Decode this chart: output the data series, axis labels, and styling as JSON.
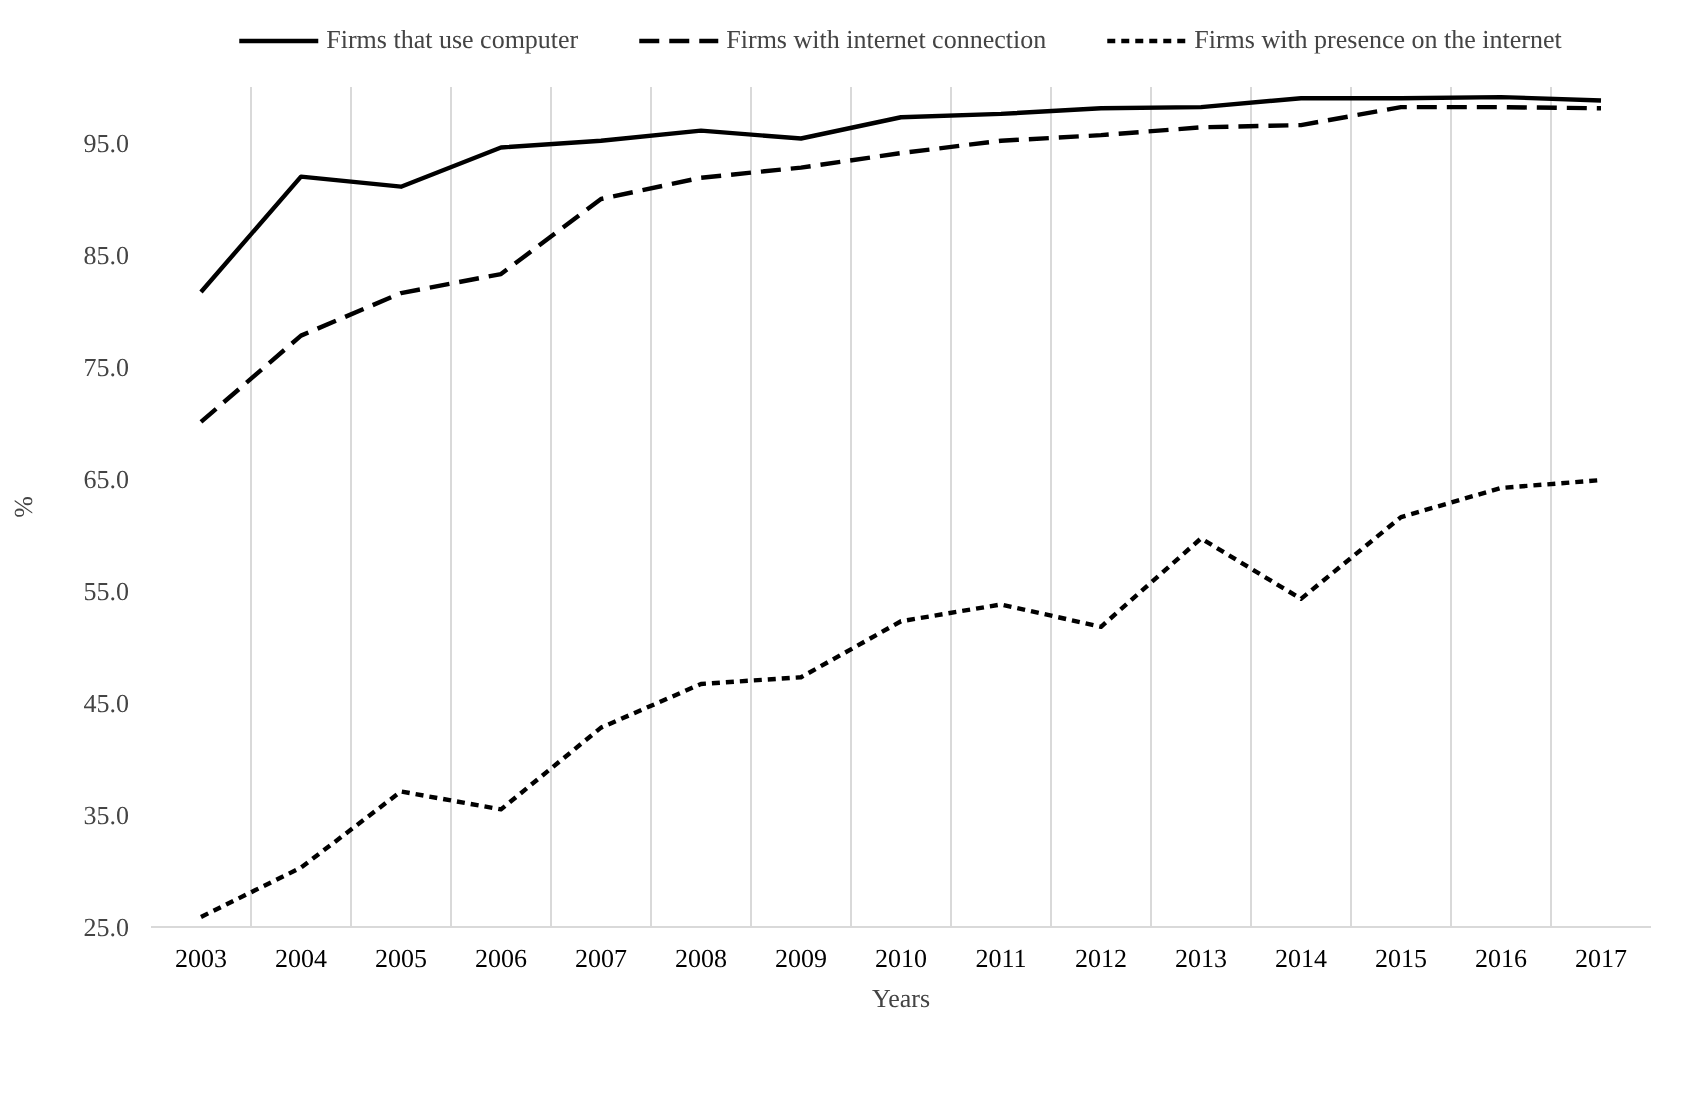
{
  "chart_data": {
    "type": "line",
    "xlabel": "Years",
    "ylabel": "%",
    "categories": [
      "2003",
      "2004",
      "2005",
      "2006",
      "2007",
      "2008",
      "2009",
      "2010",
      "2011",
      "2012",
      "2013",
      "2014",
      "2015",
      "2016",
      "2017"
    ],
    "series": [
      {
        "name": "Firms that use computer",
        "color": "#000000",
        "line_style": "solid",
        "values": [
          81.7,
          92.0,
          91.1,
          94.6,
          95.2,
          96.1,
          95.4,
          97.3,
          97.6,
          98.1,
          98.2,
          99.0,
          99.0,
          99.1,
          98.8
        ]
      },
      {
        "name": "Firms with internet connection",
        "color": "#000000",
        "line_style": "dashed",
        "values": [
          70.1,
          77.8,
          81.6,
          83.3,
          90.0,
          91.9,
          92.8,
          94.1,
          95.2,
          95.7,
          96.4,
          96.6,
          98.2,
          98.2,
          98.1
        ]
      },
      {
        "name": "Firms with presence on the internet",
        "color": "#000000",
        "line_style": "dotted",
        "values": [
          25.9,
          30.3,
          37.1,
          35.5,
          42.8,
          46.7,
          47.3,
          52.3,
          53.8,
          51.8,
          59.7,
          54.3,
          61.6,
          64.2,
          64.9
        ]
      }
    ],
    "ylim": [
      25,
      100
    ],
    "yticks": [
      {
        "value": 25,
        "label": "25.0"
      },
      {
        "value": 35,
        "label": "35.0"
      },
      {
        "value": 45,
        "label": "45.0"
      },
      {
        "value": 55,
        "label": "55.0"
      },
      {
        "value": 65,
        "label": "65.0"
      },
      {
        "value": 75,
        "label": "75.0"
      },
      {
        "value": 85,
        "label": "85.0"
      },
      {
        "value": 95,
        "label": "95.0"
      }
    ],
    "grid": "x",
    "legend": "top",
    "marker": "none"
  }
}
